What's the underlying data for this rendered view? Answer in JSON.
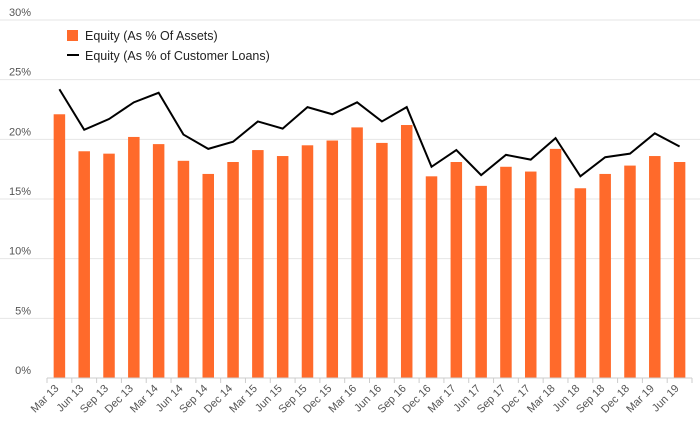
{
  "chart_data": {
    "type": "bar+line",
    "categories": [
      "Mar 13",
      "Jun 13",
      "Sep 13",
      "Dec 13",
      "Mar 14",
      "Jun 14",
      "Sep 14",
      "Dec 14",
      "Mar 15",
      "Jun 15",
      "Sep 15",
      "Dec 15",
      "Mar 16",
      "Jun 16",
      "Sep 16",
      "Dec 16",
      "Mar 17",
      "Jun 17",
      "Sep 17",
      "Dec 17",
      "Mar 18",
      "Jun 18",
      "Sep 18",
      "Dec 18",
      "Mar 19",
      "Jun 19"
    ],
    "series": [
      {
        "name": "Equity (As % Of Assets)",
        "type": "bar",
        "color": "#ff6a2b",
        "values": [
          22.1,
          19.0,
          18.8,
          20.2,
          19.6,
          18.2,
          17.1,
          18.1,
          19.1,
          18.6,
          19.5,
          19.9,
          21.0,
          19.7,
          21.2,
          16.9,
          18.1,
          16.1,
          17.7,
          17.3,
          19.2,
          15.9,
          17.1,
          17.8,
          18.6,
          18.1
        ]
      },
      {
        "name": "Equity (As % of Customer Loans)",
        "type": "line",
        "color": "#000000",
        "values": [
          24.2,
          20.8,
          21.7,
          23.1,
          23.9,
          20.4,
          19.2,
          19.8,
          21.5,
          20.9,
          22.7,
          22.1,
          23.1,
          21.5,
          22.7,
          17.7,
          19.1,
          17.0,
          18.7,
          18.3,
          20.1,
          16.9,
          18.5,
          18.8,
          20.5,
          19.4
        ]
      }
    ],
    "y_ticks": [
      "0%",
      "5%",
      "10%",
      "15%",
      "20%",
      "25%",
      "30%"
    ],
    "ylim": [
      0,
      30
    ],
    "grid": true,
    "legend_position": "top-left"
  }
}
